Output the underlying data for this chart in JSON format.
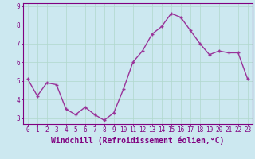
{
  "x": [
    0,
    1,
    2,
    3,
    4,
    5,
    6,
    7,
    8,
    9,
    10,
    11,
    12,
    13,
    14,
    15,
    16,
    17,
    18,
    19,
    20,
    21,
    22,
    23
  ],
  "y": [
    5.1,
    4.2,
    4.9,
    4.8,
    3.5,
    3.2,
    3.6,
    3.2,
    2.9,
    3.3,
    4.55,
    6.0,
    6.6,
    7.5,
    7.9,
    8.6,
    8.4,
    7.7,
    7.0,
    6.4,
    6.6,
    6.5,
    6.5,
    5.1
  ],
  "line_color": "#993399",
  "marker": "+",
  "bg_color": "#cce8f0",
  "grid_color": "#b0d8cc",
  "xlabel": "Windchill (Refroidissement éolien,°C)",
  "ylabel": "",
  "ylim": [
    2.7,
    9.15
  ],
  "xlim": [
    -0.5,
    23.5
  ],
  "yticks": [
    3,
    4,
    5,
    6,
    7,
    8,
    9
  ],
  "xticks": [
    0,
    1,
    2,
    3,
    4,
    5,
    6,
    7,
    8,
    9,
    10,
    11,
    12,
    13,
    14,
    15,
    16,
    17,
    18,
    19,
    20,
    21,
    22,
    23
  ],
  "tick_fontsize": 5.5,
  "xlabel_fontsize": 7.0,
  "axis_color": "#800080",
  "linewidth": 1.0,
  "markersize": 3.5,
  "markeredgewidth": 1.0
}
